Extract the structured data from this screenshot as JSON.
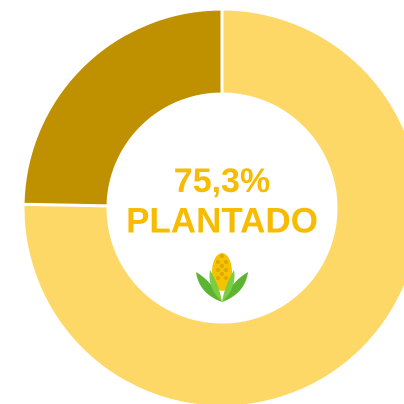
{
  "chart_data": {
    "type": "donut",
    "categories": [
      "PLANTADO",
      null
    ],
    "values": [
      75.3,
      24.7
    ],
    "value_labels": [
      "75,3%",
      null
    ],
    "colors": [
      "#fed867",
      "#bf9000"
    ],
    "label_color": "#f7bb00"
  }
}
